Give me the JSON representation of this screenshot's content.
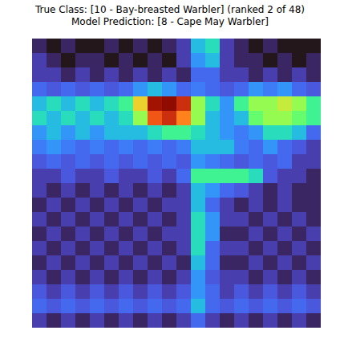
{
  "chart_data": {
    "type": "heatmap",
    "title": "True Class: [10 - Bay-breasted Warbler] (ranked 2 of 48)",
    "subtitle": "Model Prediction: [8 - Cape May Warbler]",
    "tick_labels": false,
    "cells": [
      [
        0.12,
        0.1,
        0.12,
        0.1,
        0.1,
        0.12,
        0.1,
        0.12,
        0.1,
        0.12,
        0.15,
        0.3,
        0.35,
        0.15,
        0.12,
        0.1,
        0.12,
        0.1,
        0.1,
        0.1
      ],
      [
        0.15,
        0.12,
        0.1,
        0.12,
        0.12,
        0.1,
        0.12,
        0.1,
        0.12,
        0.1,
        0.15,
        0.25,
        0.3,
        0.15,
        0.12,
        0.12,
        0.1,
        0.12,
        0.1,
        0.12
      ],
      [
        0.15,
        0.15,
        0.12,
        0.15,
        0.12,
        0.15,
        0.12,
        0.15,
        0.12,
        0.15,
        0.12,
        0.2,
        0.2,
        0.15,
        0.15,
        0.12,
        0.15,
        0.12,
        0.15,
        0.12
      ],
      [
        0.2,
        0.18,
        0.2,
        0.18,
        0.2,
        0.18,
        0.2,
        0.25,
        0.3,
        0.25,
        0.2,
        0.22,
        0.2,
        0.18,
        0.2,
        0.25,
        0.22,
        0.25,
        0.2,
        0.18
      ],
      [
        0.3,
        0.35,
        0.3,
        0.35,
        0.3,
        0.35,
        0.4,
        0.6,
        0.85,
        0.9,
        0.8,
        0.5,
        0.35,
        0.25,
        0.4,
        0.5,
        0.5,
        0.55,
        0.5,
        0.4
      ],
      [
        0.35,
        0.3,
        0.35,
        0.3,
        0.35,
        0.3,
        0.35,
        0.5,
        0.75,
        0.8,
        0.7,
        0.5,
        0.3,
        0.25,
        0.3,
        0.45,
        0.5,
        0.5,
        0.45,
        0.4
      ],
      [
        0.25,
        0.3,
        0.25,
        0.3,
        0.25,
        0.3,
        0.3,
        0.3,
        0.35,
        0.4,
        0.4,
        0.35,
        0.3,
        0.25,
        0.22,
        0.25,
        0.35,
        0.35,
        0.3,
        0.2
      ],
      [
        0.22,
        0.25,
        0.22,
        0.2,
        0.22,
        0.2,
        0.22,
        0.2,
        0.22,
        0.2,
        0.22,
        0.3,
        0.3,
        0.3,
        0.22,
        0.2,
        0.25,
        0.2,
        0.18,
        0.15
      ],
      [
        0.18,
        0.2,
        0.18,
        0.2,
        0.18,
        0.2,
        0.18,
        0.2,
        0.18,
        0.2,
        0.18,
        0.25,
        0.22,
        0.2,
        0.18,
        0.2,
        0.18,
        0.2,
        0.15,
        0.15
      ],
      [
        0.15,
        0.15,
        0.18,
        0.15,
        0.15,
        0.18,
        0.15,
        0.15,
        0.18,
        0.15,
        0.2,
        0.4,
        0.4,
        0.4,
        0.4,
        0.35,
        0.18,
        0.15,
        0.15,
        0.12
      ],
      [
        0.15,
        0.12,
        0.15,
        0.12,
        0.15,
        0.12,
        0.15,
        0.12,
        0.15,
        0.12,
        0.15,
        0.3,
        0.25,
        0.2,
        0.18,
        0.15,
        0.12,
        0.15,
        0.12,
        0.12
      ],
      [
        0.12,
        0.15,
        0.12,
        0.15,
        0.12,
        0.15,
        0.12,
        0.15,
        0.12,
        0.15,
        0.15,
        0.3,
        0.2,
        0.15,
        0.12,
        0.15,
        0.12,
        0.15,
        0.12,
        0.12
      ],
      [
        0.15,
        0.12,
        0.15,
        0.12,
        0.15,
        0.12,
        0.15,
        0.12,
        0.15,
        0.12,
        0.15,
        0.35,
        0.25,
        0.15,
        0.15,
        0.12,
        0.15,
        0.12,
        0.15,
        0.12
      ],
      [
        0.12,
        0.15,
        0.12,
        0.15,
        0.12,
        0.15,
        0.12,
        0.15,
        0.12,
        0.15,
        0.15,
        0.35,
        0.25,
        0.12,
        0.12,
        0.15,
        0.12,
        0.15,
        0.12,
        0.15
      ],
      [
        0.15,
        0.12,
        0.15,
        0.12,
        0.15,
        0.12,
        0.15,
        0.12,
        0.15,
        0.12,
        0.15,
        0.35,
        0.2,
        0.15,
        0.15,
        0.12,
        0.15,
        0.12,
        0.15,
        0.12
      ],
      [
        0.12,
        0.15,
        0.12,
        0.15,
        0.12,
        0.15,
        0.12,
        0.15,
        0.12,
        0.15,
        0.12,
        0.3,
        0.2,
        0.12,
        0.12,
        0.15,
        0.12,
        0.15,
        0.12,
        0.15
      ],
      [
        0.15,
        0.12,
        0.15,
        0.12,
        0.15,
        0.12,
        0.15,
        0.12,
        0.15,
        0.12,
        0.15,
        0.25,
        0.18,
        0.15,
        0.15,
        0.12,
        0.15,
        0.12,
        0.15,
        0.12
      ],
      [
        0.18,
        0.15,
        0.18,
        0.15,
        0.18,
        0.15,
        0.18,
        0.15,
        0.18,
        0.15,
        0.18,
        0.25,
        0.2,
        0.15,
        0.18,
        0.15,
        0.18,
        0.15,
        0.18,
        0.15
      ],
      [
        0.2,
        0.18,
        0.2,
        0.18,
        0.2,
        0.18,
        0.2,
        0.18,
        0.2,
        0.18,
        0.2,
        0.3,
        0.2,
        0.18,
        0.2,
        0.18,
        0.2,
        0.18,
        0.2,
        0.18
      ],
      [
        0.15,
        0.12,
        0.15,
        0.12,
        0.15,
        0.12,
        0.15,
        0.12,
        0.15,
        0.12,
        0.15,
        0.2,
        0.15,
        0.12,
        0.15,
        0.12,
        0.15,
        0.12,
        0.15,
        0.12
      ]
    ]
  }
}
